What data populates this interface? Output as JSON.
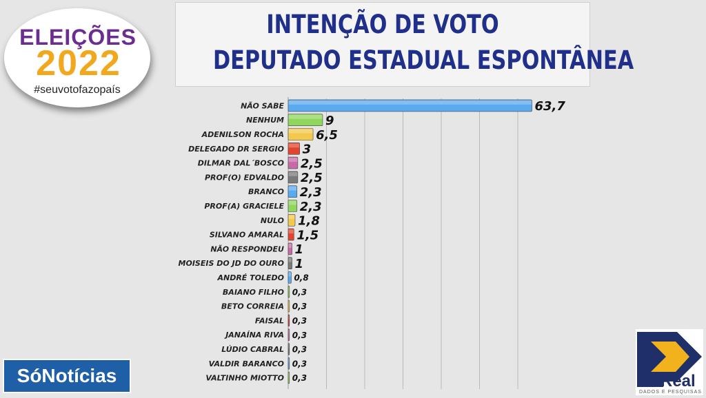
{
  "title": {
    "line1": "INTENÇÃO DE VOTO",
    "line2": "DEPUTADO ESTADUAL ESPONTÂNEA"
  },
  "logo": {
    "word": "ELEIÇÕES",
    "year": "2022",
    "tag": "#seuvotofazopaís"
  },
  "brand_left": "SóNotícias",
  "brand_right": {
    "name": "Real",
    "sub": "DADOS E PESQUISAS"
  },
  "colors": {
    "blue": "#5aaaf0",
    "green": "#8fd65c",
    "yellow": "#f2c94c",
    "red": "#e0452f",
    "pink": "#c96aa8",
    "gray": "#7a7a7a",
    "title": "#1f2f8a"
  },
  "chart_data": {
    "type": "bar",
    "orientation": "horizontal",
    "xlim": [
      0,
      70
    ],
    "grid": true,
    "categories": [
      "NÃO SABE",
      "NENHUM",
      "ADENILSON ROCHA",
      "DELEGADO DR SERGIO",
      "DILMAR DAL´BOSCO",
      "PROF(O) EDVALDO",
      "BRANCO",
      "PROF(A) GRACIELE",
      "NULO",
      "SILVANO AMARAL",
      "NÃO RESPONDEU",
      "MOISEIS DO JD DO OURO",
      "ANDRÉ TOLEDO",
      "BAIANO FILHO",
      "BETO CORREIA",
      "FAISAL",
      "JANAÍNA RIVA",
      "LÚDIO CABRAL",
      "VALDIR BARANCO",
      "VALTINHO MIOTTO"
    ],
    "values": [
      63.7,
      9,
      6.5,
      3,
      2.5,
      2.5,
      2.3,
      2.3,
      1.8,
      1.5,
      1,
      1,
      0.8,
      0.3,
      0.3,
      0.3,
      0.3,
      0.3,
      0.3,
      0.3
    ],
    "value_labels": [
      "63,7",
      "9",
      "6,5",
      "3",
      "2,5",
      "2,5",
      "2,3",
      "2,3",
      "1,8",
      "1,5",
      "1",
      "1",
      "0,8",
      "0,3",
      "0,3",
      "0,3",
      "0,3",
      "0,3",
      "0,3",
      "0,3"
    ],
    "bar_colors": [
      "blue",
      "green",
      "yellow",
      "red",
      "pink",
      "gray",
      "blue",
      "green",
      "yellow",
      "red",
      "pink",
      "gray",
      "blue",
      "green",
      "yellow",
      "red",
      "pink",
      "gray",
      "blue",
      "green"
    ]
  }
}
